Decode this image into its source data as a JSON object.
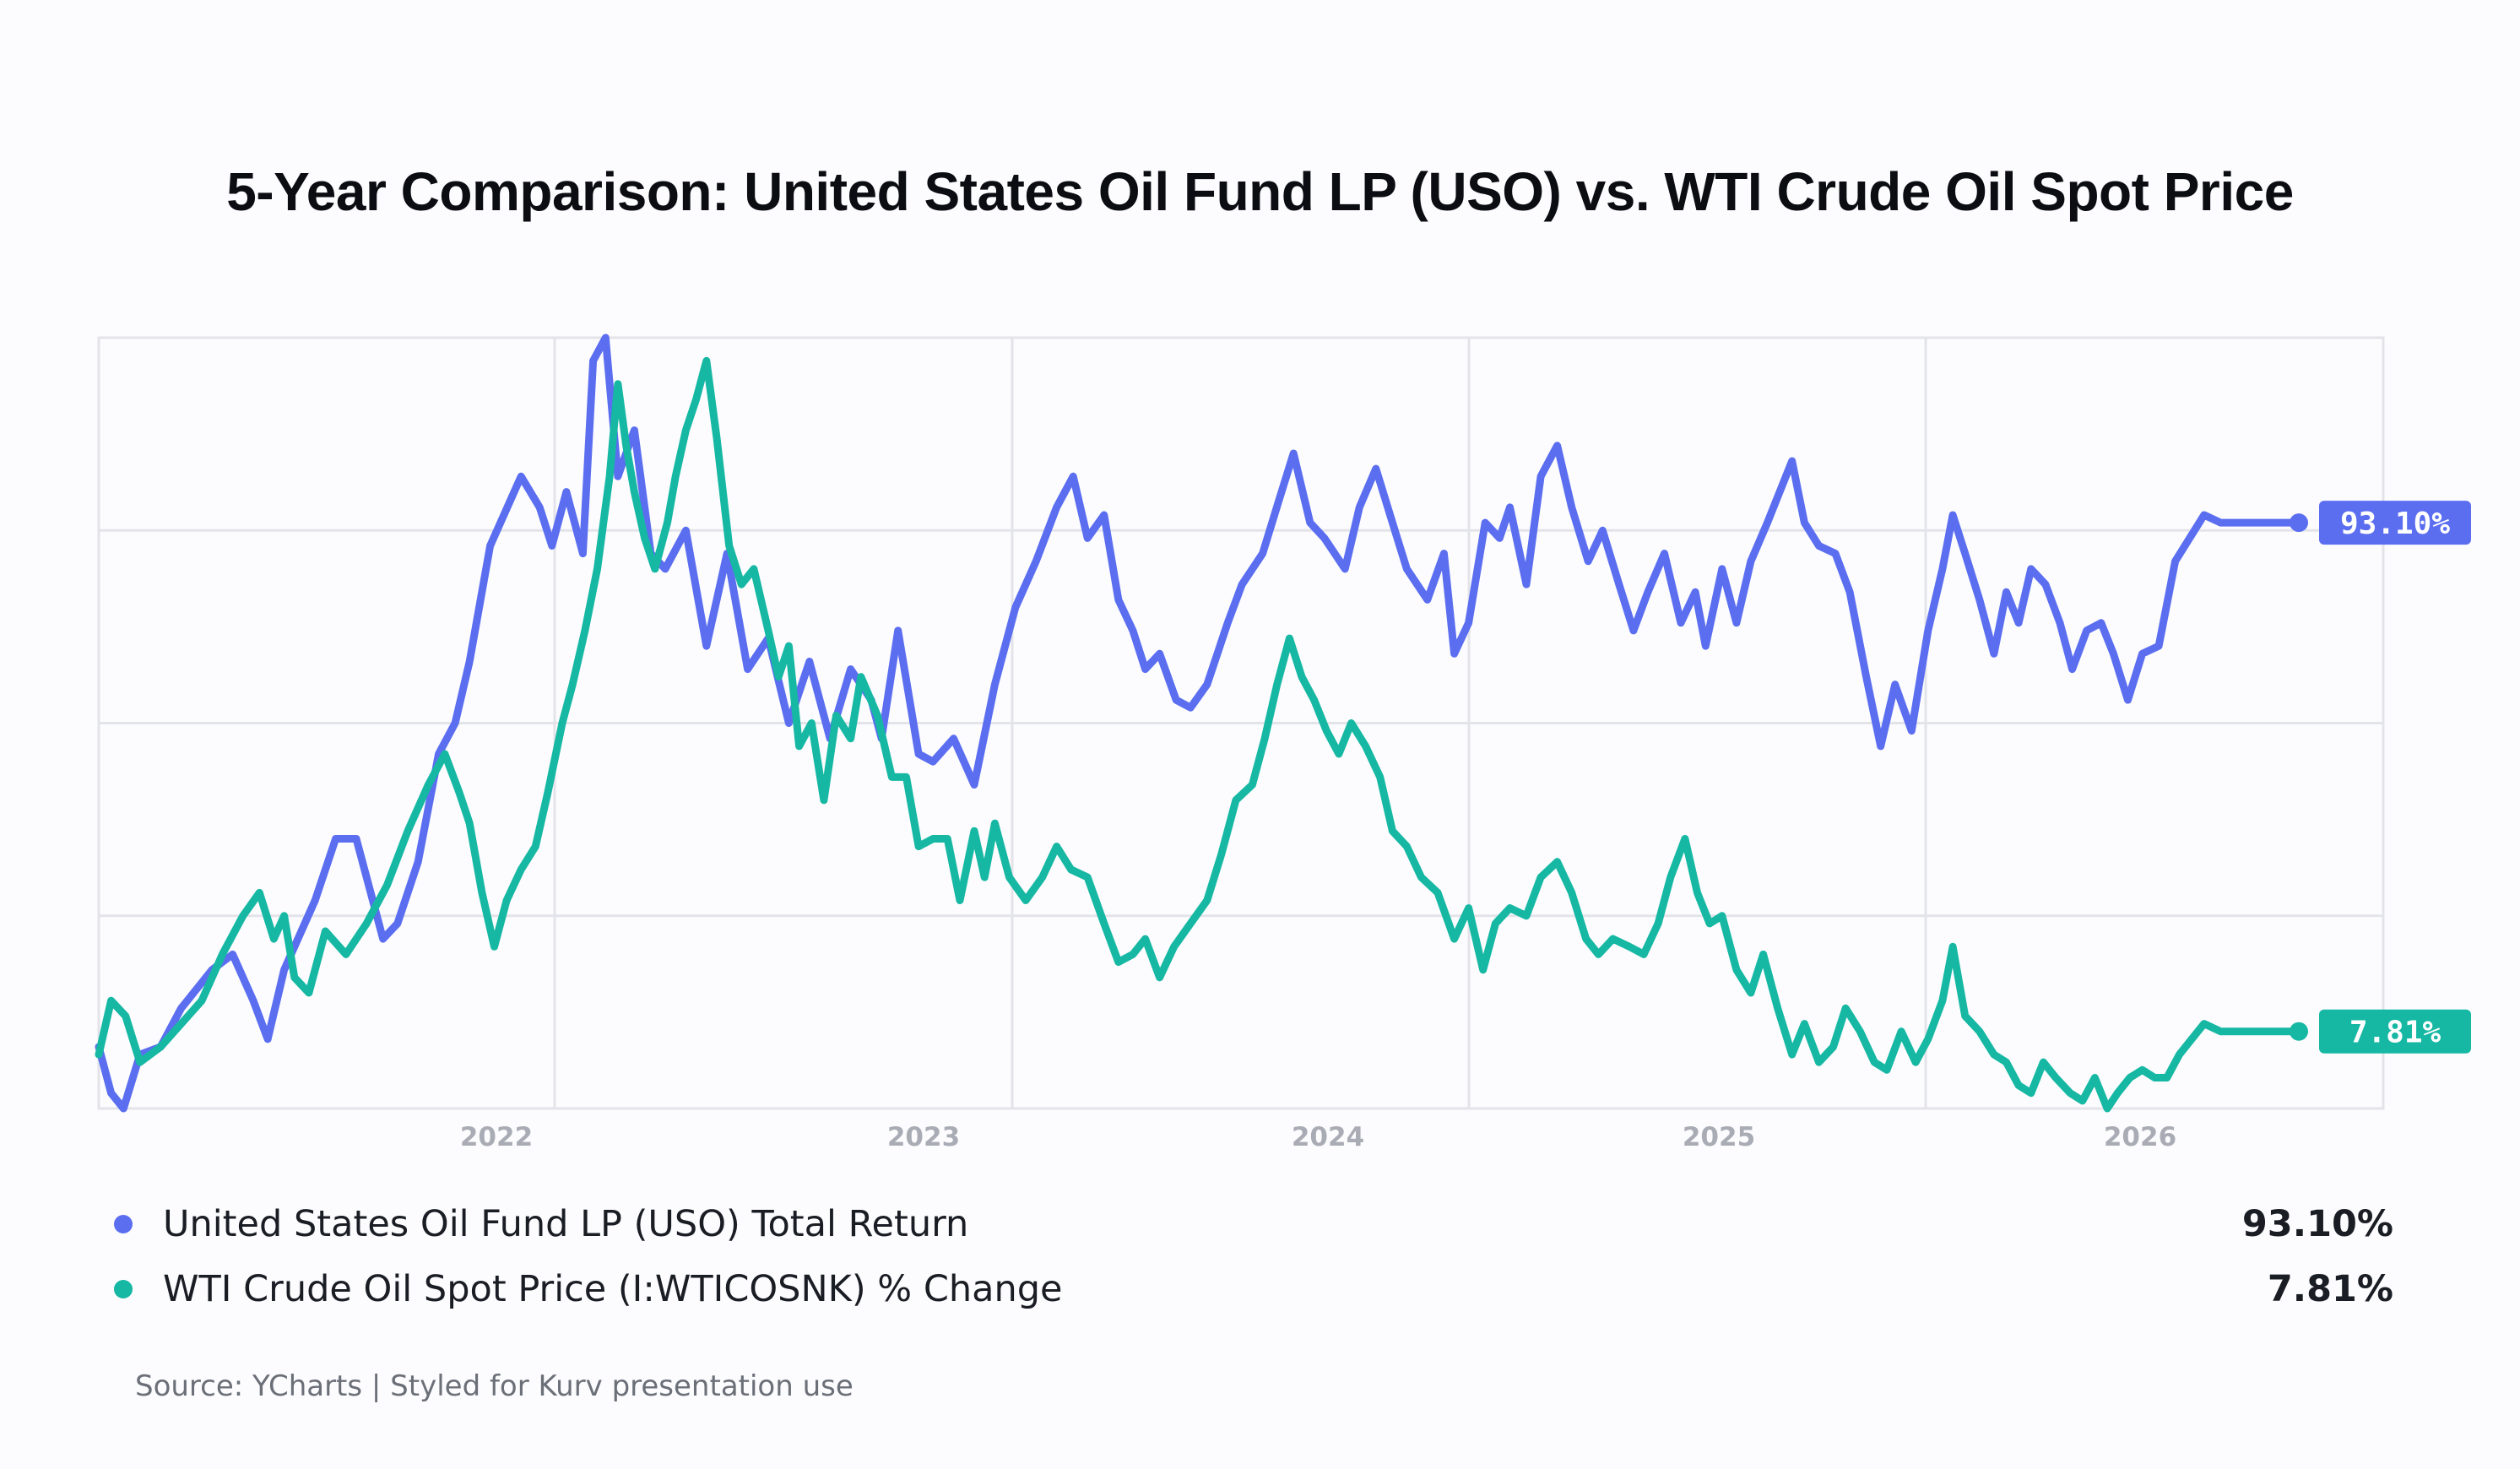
{
  "title": "5-Year Comparison: United States Oil Fund LP (USO) vs. WTI Crude Oil Spot Price",
  "chart_data": {
    "type": "line",
    "title": "5-Year Comparison: United States Oil Fund LP (USO) vs. WTI Crude Oil Spot Price",
    "xlabel": "",
    "ylabel": "",
    "x_tick_labels": [
      "2022",
      "2023",
      "2024",
      "2025",
      "2026"
    ],
    "y_tick_labels": [],
    "grid": true,
    "series": [
      {
        "name": "United States Oil Fund LP (USO) Total Return",
        "color": "#5b6ef0",
        "end_label": "93.10%",
        "points": [
          [
            0,
            0.08
          ],
          [
            0.6,
            0.02
          ],
          [
            1.2,
            0.0
          ],
          [
            2.0,
            0.07
          ],
          [
            3.0,
            0.08
          ],
          [
            4.0,
            0.13
          ],
          [
            5.5,
            0.18
          ],
          [
            6.5,
            0.2
          ],
          [
            7.5,
            0.14
          ],
          [
            8.2,
            0.09
          ],
          [
            9.0,
            0.18
          ],
          [
            10.5,
            0.27
          ],
          [
            11.5,
            0.35
          ],
          [
            12.5,
            0.35
          ],
          [
            13.2,
            0.28
          ],
          [
            13.8,
            0.22
          ],
          [
            14.5,
            0.24
          ],
          [
            15.5,
            0.32
          ],
          [
            16.5,
            0.46
          ],
          [
            17.3,
            0.5
          ],
          [
            18.0,
            0.58
          ],
          [
            19.0,
            0.73
          ],
          [
            20.5,
            0.82
          ],
          [
            21.4,
            0.78
          ],
          [
            22.0,
            0.73
          ],
          [
            22.7,
            0.8
          ],
          [
            23.5,
            0.72
          ],
          [
            24.0,
            0.97
          ],
          [
            24.6,
            1.0
          ],
          [
            25.2,
            0.82
          ],
          [
            26.0,
            0.88
          ],
          [
            26.8,
            0.72
          ],
          [
            27.5,
            0.7
          ],
          [
            28.5,
            0.75
          ],
          [
            29.5,
            0.6
          ],
          [
            30.5,
            0.72
          ],
          [
            31.5,
            0.57
          ],
          [
            32.5,
            0.61
          ],
          [
            33.5,
            0.5
          ],
          [
            34.5,
            0.58
          ],
          [
            35.5,
            0.48
          ],
          [
            36.5,
            0.57
          ],
          [
            37.5,
            0.53
          ],
          [
            38.0,
            0.48
          ],
          [
            38.8,
            0.62
          ],
          [
            39.8,
            0.46
          ],
          [
            40.5,
            0.45
          ],
          [
            41.5,
            0.48
          ],
          [
            42.5,
            0.42
          ],
          [
            43.5,
            0.55
          ],
          [
            44.5,
            0.65
          ],
          [
            45.5,
            0.71
          ],
          [
            46.5,
            0.78
          ],
          [
            47.3,
            0.82
          ],
          [
            48.0,
            0.74
          ],
          [
            48.8,
            0.77
          ],
          [
            49.5,
            0.66
          ],
          [
            50.2,
            0.62
          ],
          [
            50.8,
            0.57
          ],
          [
            51.5,
            0.59
          ],
          [
            52.3,
            0.53
          ],
          [
            53.0,
            0.52
          ],
          [
            53.8,
            0.55
          ],
          [
            54.8,
            0.63
          ],
          [
            55.5,
            0.68
          ],
          [
            56.5,
            0.72
          ],
          [
            57.3,
            0.79
          ],
          [
            58.0,
            0.85
          ],
          [
            58.8,
            0.76
          ],
          [
            59.5,
            0.74
          ],
          [
            60.5,
            0.7
          ],
          [
            61.2,
            0.78
          ],
          [
            62.0,
            0.83
          ],
          [
            62.8,
            0.76
          ],
          [
            63.5,
            0.7
          ],
          [
            64.5,
            0.66
          ],
          [
            65.3,
            0.72
          ],
          [
            65.8,
            0.59
          ],
          [
            66.5,
            0.63
          ],
          [
            67.3,
            0.76
          ],
          [
            68.0,
            0.74
          ],
          [
            68.5,
            0.78
          ],
          [
            69.3,
            0.68
          ],
          [
            70.0,
            0.82
          ],
          [
            70.8,
            0.86
          ],
          [
            71.5,
            0.78
          ],
          [
            72.3,
            0.71
          ],
          [
            73.0,
            0.75
          ],
          [
            73.8,
            0.68
          ],
          [
            74.5,
            0.62
          ],
          [
            75.2,
            0.67
          ],
          [
            76.0,
            0.72
          ],
          [
            76.8,
            0.63
          ],
          [
            77.5,
            0.67
          ],
          [
            78.0,
            0.6
          ],
          [
            78.8,
            0.7
          ],
          [
            79.5,
            0.63
          ],
          [
            80.2,
            0.71
          ],
          [
            81.0,
            0.76
          ],
          [
            81.6,
            0.8
          ],
          [
            82.2,
            0.84
          ],
          [
            82.8,
            0.76
          ],
          [
            83.5,
            0.73
          ],
          [
            84.3,
            0.72
          ],
          [
            85.0,
            0.67
          ],
          [
            85.8,
            0.56
          ],
          [
            86.5,
            0.47
          ],
          [
            87.2,
            0.55
          ],
          [
            88.0,
            0.49
          ],
          [
            88.8,
            0.62
          ],
          [
            89.5,
            0.7
          ],
          [
            90.0,
            0.77
          ],
          [
            90.6,
            0.72
          ],
          [
            91.3,
            0.66
          ],
          [
            92.0,
            0.59
          ],
          [
            92.6,
            0.67
          ],
          [
            93.2,
            0.63
          ],
          [
            93.8,
            0.7
          ],
          [
            94.5,
            0.68
          ],
          [
            95.2,
            0.63
          ],
          [
            95.8,
            0.57
          ],
          [
            96.5,
            0.62
          ],
          [
            97.2,
            0.63
          ],
          [
            97.8,
            0.59
          ],
          [
            98.5,
            0.53
          ],
          [
            99.2,
            0.59
          ],
          [
            100.0,
            0.6
          ],
          [
            100.8,
            0.71
          ],
          [
            101.5,
            0.74
          ],
          [
            102.2,
            0.77
          ],
          [
            103.0,
            0.76
          ],
          [
            104.0,
            0.76
          ],
          [
            105.0,
            0.76
          ],
          [
            106.0,
            0.76
          ],
          [
            106.8,
            0.76
          ]
        ]
      },
      {
        "name": "WTI Crude Oil Spot Price (I:WTICOSNK) % Change",
        "color": "#16b8a3",
        "end_label": "7.81%",
        "points": [
          [
            0,
            0.07
          ],
          [
            0.6,
            0.14
          ],
          [
            1.3,
            0.12
          ],
          [
            2.0,
            0.06
          ],
          [
            3.0,
            0.08
          ],
          [
            4.0,
            0.11
          ],
          [
            5.0,
            0.14
          ],
          [
            6.0,
            0.2
          ],
          [
            7.0,
            0.25
          ],
          [
            7.8,
            0.28
          ],
          [
            8.5,
            0.22
          ],
          [
            9.0,
            0.25
          ],
          [
            9.5,
            0.17
          ],
          [
            10.2,
            0.15
          ],
          [
            11.0,
            0.23
          ],
          [
            12.0,
            0.2
          ],
          [
            13.0,
            0.24
          ],
          [
            14.0,
            0.29
          ],
          [
            15.0,
            0.36
          ],
          [
            16.0,
            0.42
          ],
          [
            16.8,
            0.46
          ],
          [
            17.5,
            0.41
          ],
          [
            18.0,
            0.37
          ],
          [
            18.6,
            0.28
          ],
          [
            19.2,
            0.21
          ],
          [
            19.8,
            0.27
          ],
          [
            20.5,
            0.31
          ],
          [
            21.2,
            0.34
          ],
          [
            21.8,
            0.41
          ],
          [
            22.5,
            0.5
          ],
          [
            23.0,
            0.55
          ],
          [
            23.6,
            0.62
          ],
          [
            24.2,
            0.7
          ],
          [
            24.8,
            0.82
          ],
          [
            25.2,
            0.94
          ],
          [
            25.6,
            0.86
          ],
          [
            26.0,
            0.8
          ],
          [
            26.5,
            0.74
          ],
          [
            27.0,
            0.7
          ],
          [
            27.6,
            0.76
          ],
          [
            28.0,
            0.82
          ],
          [
            28.5,
            0.88
          ],
          [
            29.0,
            0.92
          ],
          [
            29.5,
            0.97
          ],
          [
            30.0,
            0.87
          ],
          [
            30.6,
            0.73
          ],
          [
            31.2,
            0.68
          ],
          [
            31.8,
            0.7
          ],
          [
            32.5,
            0.62
          ],
          [
            33.0,
            0.56
          ],
          [
            33.5,
            0.6
          ],
          [
            34.0,
            0.47
          ],
          [
            34.6,
            0.5
          ],
          [
            35.2,
            0.4
          ],
          [
            35.8,
            0.51
          ],
          [
            36.5,
            0.48
          ],
          [
            37.0,
            0.56
          ],
          [
            37.8,
            0.51
          ],
          [
            38.5,
            0.43
          ],
          [
            39.2,
            0.43
          ],
          [
            39.8,
            0.34
          ],
          [
            40.5,
            0.35
          ],
          [
            41.2,
            0.35
          ],
          [
            41.8,
            0.27
          ],
          [
            42.5,
            0.36
          ],
          [
            43.0,
            0.3
          ],
          [
            43.5,
            0.37
          ],
          [
            44.2,
            0.3
          ],
          [
            45.0,
            0.27
          ],
          [
            45.8,
            0.3
          ],
          [
            46.5,
            0.34
          ],
          [
            47.2,
            0.31
          ],
          [
            48.0,
            0.3
          ],
          [
            48.8,
            0.24
          ],
          [
            49.5,
            0.19
          ],
          [
            50.2,
            0.2
          ],
          [
            50.8,
            0.22
          ],
          [
            51.5,
            0.17
          ],
          [
            52.2,
            0.21
          ],
          [
            53.0,
            0.24
          ],
          [
            53.8,
            0.27
          ],
          [
            54.5,
            0.33
          ],
          [
            55.2,
            0.4
          ],
          [
            56.0,
            0.42
          ],
          [
            56.6,
            0.48
          ],
          [
            57.2,
            0.55
          ],
          [
            57.8,
            0.61
          ],
          [
            58.4,
            0.56
          ],
          [
            59.0,
            0.53
          ],
          [
            59.6,
            0.49
          ],
          [
            60.2,
            0.46
          ],
          [
            60.8,
            0.5
          ],
          [
            61.5,
            0.47
          ],
          [
            62.2,
            0.43
          ],
          [
            62.8,
            0.36
          ],
          [
            63.5,
            0.34
          ],
          [
            64.2,
            0.3
          ],
          [
            65.0,
            0.28
          ],
          [
            65.8,
            0.22
          ],
          [
            66.5,
            0.26
          ],
          [
            67.2,
            0.18
          ],
          [
            67.8,
            0.24
          ],
          [
            68.5,
            0.26
          ],
          [
            69.3,
            0.25
          ],
          [
            70.0,
            0.3
          ],
          [
            70.8,
            0.32
          ],
          [
            71.5,
            0.28
          ],
          [
            72.2,
            0.22
          ],
          [
            72.8,
            0.2
          ],
          [
            73.5,
            0.22
          ],
          [
            74.3,
            0.21
          ],
          [
            75.0,
            0.2
          ],
          [
            75.7,
            0.24
          ],
          [
            76.3,
            0.3
          ],
          [
            77.0,
            0.35
          ],
          [
            77.6,
            0.28
          ],
          [
            78.2,
            0.24
          ],
          [
            78.8,
            0.25
          ],
          [
            79.5,
            0.18
          ],
          [
            80.2,
            0.15
          ],
          [
            80.8,
            0.2
          ],
          [
            81.5,
            0.13
          ],
          [
            82.2,
            0.07
          ],
          [
            82.8,
            0.11
          ],
          [
            83.5,
            0.06
          ],
          [
            84.2,
            0.08
          ],
          [
            84.8,
            0.13
          ],
          [
            85.5,
            0.1
          ],
          [
            86.2,
            0.06
          ],
          [
            86.8,
            0.05
          ],
          [
            87.5,
            0.1
          ],
          [
            88.2,
            0.06
          ],
          [
            88.8,
            0.09
          ],
          [
            89.5,
            0.14
          ],
          [
            90.0,
            0.21
          ],
          [
            90.6,
            0.12
          ],
          [
            91.3,
            0.1
          ],
          [
            92.0,
            0.07
          ],
          [
            92.6,
            0.06
          ],
          [
            93.2,
            0.03
          ],
          [
            93.8,
            0.02
          ],
          [
            94.4,
            0.06
          ],
          [
            95.0,
            0.04
          ],
          [
            95.7,
            0.02
          ],
          [
            96.3,
            0.01
          ],
          [
            96.9,
            0.04
          ],
          [
            97.5,
            0.0
          ],
          [
            98.0,
            0.02
          ],
          [
            98.6,
            0.04
          ],
          [
            99.2,
            0.05
          ],
          [
            99.8,
            0.04
          ],
          [
            100.4,
            0.04
          ],
          [
            101.0,
            0.07
          ],
          [
            101.6,
            0.09
          ],
          [
            102.2,
            0.11
          ],
          [
            103.0,
            0.1
          ],
          [
            104.0,
            0.1
          ],
          [
            105.0,
            0.1
          ],
          [
            106.0,
            0.1
          ],
          [
            106.8,
            0.1
          ]
        ]
      }
    ]
  },
  "legend": [
    {
      "label": "United States Oil Fund LP (USO) Total Return",
      "value": "93.10%",
      "color": "#5b6ef0"
    },
    {
      "label": "WTI Crude Oil Spot Price (I:WTICOSNK) % Change",
      "value": "7.81%",
      "color": "#16b8a3"
    }
  ],
  "source": "Source: YCharts | Styled for Kurv presentation use"
}
